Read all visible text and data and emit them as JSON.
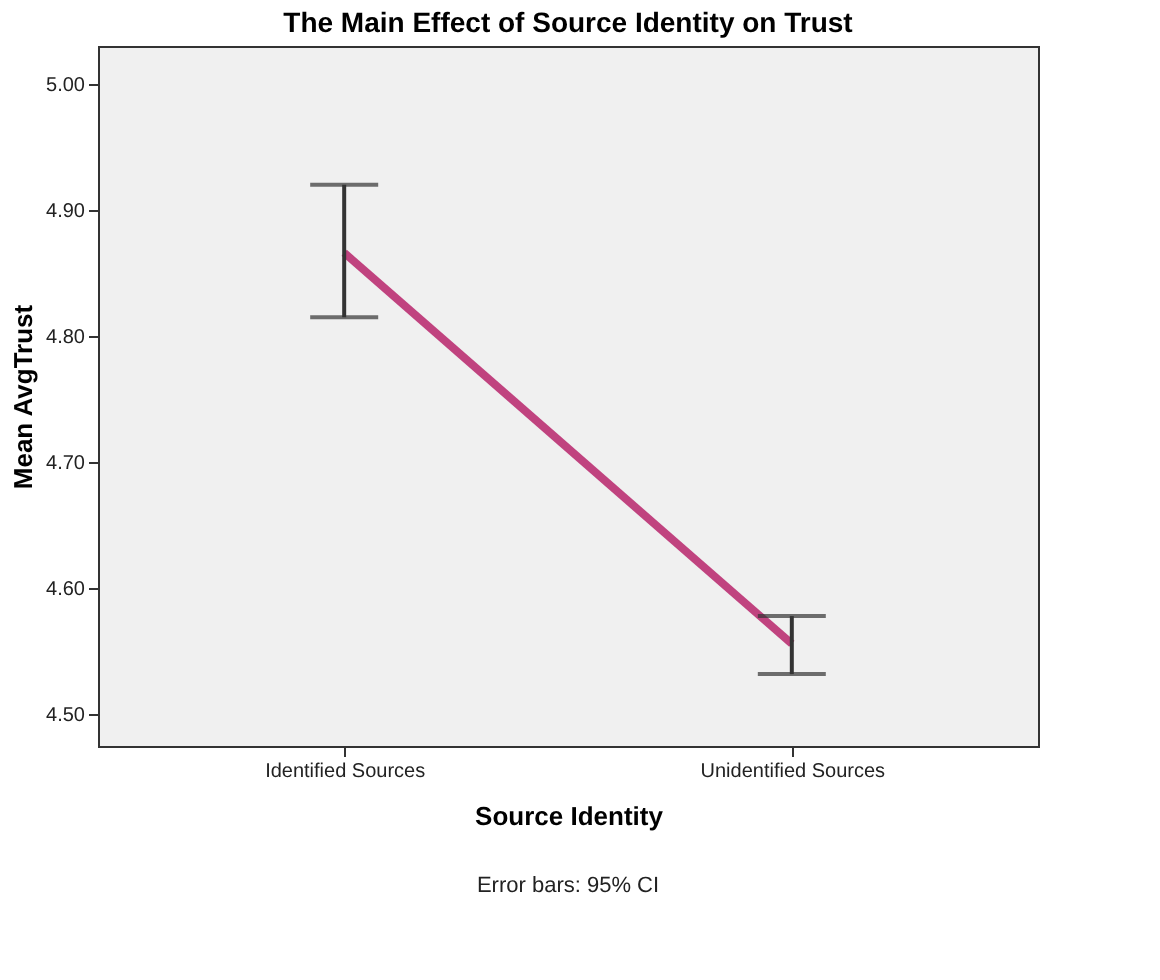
{
  "chart_data": {
    "type": "line",
    "title": "The Main Effect of Source Identity on Trust",
    "xlabel": "Source Identity",
    "ylabel": "Mean AvgTrust",
    "categories": [
      "Identified Sources",
      "Unidentified Sources"
    ],
    "series": [
      {
        "color": "#c0437f",
        "values": [
          4.866,
          4.556
        ],
        "errors": [
          [
            4.815,
            4.92
          ],
          [
            4.532,
            4.578
          ]
        ]
      }
    ],
    "ylim": [
      4.475,
      5.03
    ],
    "yticks": [
      {
        "value": 4.5,
        "label": "4.50"
      },
      {
        "value": 4.6,
        "label": "4.60"
      },
      {
        "value": 4.7,
        "label": "4.70"
      },
      {
        "value": 4.8,
        "label": "4.80"
      },
      {
        "value": 4.9,
        "label": "4.90"
      },
      {
        "value": 5.0,
        "label": "5.00"
      }
    ],
    "grid": false,
    "marker": "none",
    "line_style": "solid",
    "annotations": [
      "Error bars: 95% CI"
    ]
  }
}
